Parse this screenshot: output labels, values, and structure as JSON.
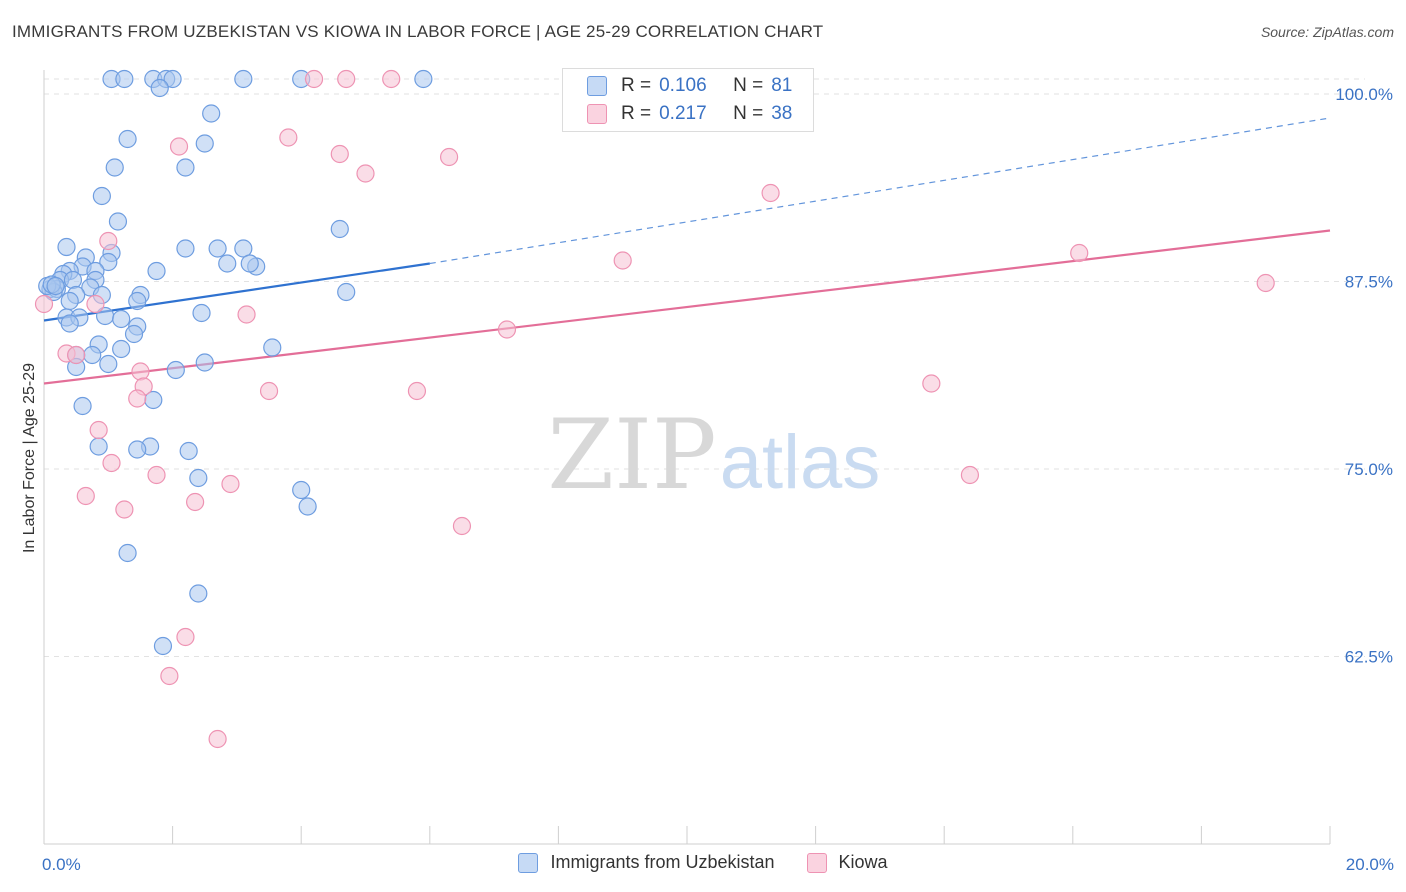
{
  "header": {
    "title": "IMMIGRANTS FROM UZBEKISTAN VS KIOWA IN LABOR FORCE | AGE 25-29 CORRELATION CHART",
    "source": "Source: ZipAtlas.com"
  },
  "watermark": {
    "zip": "ZIP",
    "atlas": "atlas"
  },
  "legend": {
    "rows": [
      {
        "r_label": "R =",
        "r_value": "0.106",
        "n_label": "N =",
        "n_value": "81"
      },
      {
        "r_label": "R =",
        "r_value": "0.217",
        "n_label": "N =",
        "n_value": "38"
      }
    ]
  },
  "colors": {
    "blue_fill": "#a9c7ef",
    "blue_stroke": "#6e9de0",
    "blue_line": "#2f72d0",
    "pink_fill": "#f6c1d3",
    "pink_stroke": "#ee93b3",
    "pink_line": "#e36e98",
    "tick_text": "#3a72c4",
    "grid": "#e2e2e2"
  },
  "chart_data": {
    "type": "scatter",
    "title": "IMMIGRANTS FROM UZBEKISTAN VS KIOWA IN LABOR FORCE | AGE 25-29 CORRELATION CHART",
    "xlabel": "",
    "ylabel": "In Labor Force | Age 25-29",
    "xlim": [
      0,
      20
    ],
    "ylim": [
      50,
      102
    ],
    "x_tick_labels": [
      {
        "value": 0,
        "label": "0.0%"
      },
      {
        "value": 20,
        "label": "20.0%"
      }
    ],
    "y_tick_labels": [
      {
        "value": 100,
        "label": "100.0%"
      },
      {
        "value": 87.5,
        "label": "87.5%"
      },
      {
        "value": 75,
        "label": "75.0%"
      },
      {
        "value": 62.5,
        "label": "62.5%"
      }
    ],
    "series": [
      {
        "name": "Immigrants from Uzbekistan",
        "color": "blue",
        "trend": {
          "x": [
            0,
            6
          ],
          "y": [
            84.9,
            88.7
          ],
          "dashed_extension": {
            "x": [
              6,
              20
            ],
            "y": [
              88.7,
              98.4
            ]
          }
        },
        "points": [
          [
            1.05,
            101
          ],
          [
            1.25,
            101
          ],
          [
            1.7,
            101
          ],
          [
            1.9,
            101
          ],
          [
            2.0,
            101
          ],
          [
            3.1,
            101
          ],
          [
            4.0,
            101
          ],
          [
            5.9,
            101
          ],
          [
            1.8,
            100.4
          ],
          [
            2.6,
            98.7
          ],
          [
            1.3,
            97.0
          ],
          [
            2.5,
            96.7
          ],
          [
            1.1,
            95.1
          ],
          [
            2.2,
            95.1
          ],
          [
            0.9,
            93.2
          ],
          [
            1.15,
            91.5
          ],
          [
            4.6,
            91.0
          ],
          [
            0.35,
            89.8
          ],
          [
            2.2,
            89.7
          ],
          [
            2.7,
            89.7
          ],
          [
            3.1,
            89.7
          ],
          [
            0.65,
            89.1
          ],
          [
            1.05,
            89.4
          ],
          [
            2.85,
            88.7
          ],
          [
            3.3,
            88.5
          ],
          [
            0.6,
            88.5
          ],
          [
            3.2,
            88.7
          ],
          [
            1.0,
            88.8
          ],
          [
            0.4,
            88.2
          ],
          [
            1.75,
            88.2
          ],
          [
            0.8,
            88.2
          ],
          [
            0.3,
            88.0
          ],
          [
            0.25,
            87.6
          ],
          [
            0.45,
            87.6
          ],
          [
            0.8,
            87.6
          ],
          [
            0.1,
            87.0
          ],
          [
            0.2,
            87.0
          ],
          [
            0.15,
            86.8
          ],
          [
            0.05,
            87.2
          ],
          [
            0.12,
            87.3
          ],
          [
            0.18,
            87.2
          ],
          [
            0.72,
            87.1
          ],
          [
            4.7,
            86.8
          ],
          [
            0.5,
            86.6
          ],
          [
            0.9,
            86.6
          ],
          [
            1.5,
            86.6
          ],
          [
            1.45,
            86.2
          ],
          [
            0.4,
            86.2
          ],
          [
            2.45,
            85.4
          ],
          [
            0.35,
            85.1
          ],
          [
            0.55,
            85.1
          ],
          [
            0.95,
            85.2
          ],
          [
            1.2,
            85.0
          ],
          [
            0.4,
            84.7
          ],
          [
            1.45,
            84.5
          ],
          [
            1.4,
            84.0
          ],
          [
            0.85,
            83.3
          ],
          [
            1.2,
            83.0
          ],
          [
            3.55,
            83.1
          ],
          [
            0.75,
            82.6
          ],
          [
            0.5,
            82.6
          ],
          [
            2.5,
            82.1
          ],
          [
            2.05,
            81.6
          ],
          [
            1.0,
            82.0
          ],
          [
            0.5,
            81.8
          ],
          [
            1.7,
            79.6
          ],
          [
            0.6,
            79.2
          ],
          [
            1.65,
            76.5
          ],
          [
            1.45,
            76.3
          ],
          [
            0.85,
            76.5
          ],
          [
            2.25,
            76.2
          ],
          [
            2.4,
            74.4
          ],
          [
            4.0,
            73.6
          ],
          [
            4.1,
            72.5
          ],
          [
            1.3,
            69.4
          ],
          [
            2.4,
            66.7
          ],
          [
            1.85,
            63.2
          ]
        ]
      },
      {
        "name": "Kiowa",
        "color": "pink",
        "trend": {
          "x": [
            0,
            20
          ],
          "y": [
            80.7,
            90.9
          ]
        },
        "points": [
          [
            4.2,
            101
          ],
          [
            4.7,
            101
          ],
          [
            5.4,
            101
          ],
          [
            3.8,
            97.1
          ],
          [
            2.1,
            96.5
          ],
          [
            4.6,
            96.0
          ],
          [
            6.3,
            95.8
          ],
          [
            5.0,
            94.7
          ],
          [
            11.3,
            93.4
          ],
          [
            1.0,
            90.2
          ],
          [
            9.0,
            88.9
          ],
          [
            16.1,
            89.4
          ],
          [
            19.0,
            87.4
          ],
          [
            0.0,
            86.0
          ],
          [
            0.8,
            86.0
          ],
          [
            3.15,
            85.3
          ],
          [
            7.2,
            84.3
          ],
          [
            0.35,
            82.7
          ],
          [
            0.5,
            82.6
          ],
          [
            1.5,
            81.5
          ],
          [
            13.8,
            80.7
          ],
          [
            1.55,
            80.5
          ],
          [
            3.5,
            80.2
          ],
          [
            5.8,
            80.2
          ],
          [
            1.45,
            79.7
          ],
          [
            0.85,
            77.6
          ],
          [
            1.05,
            75.4
          ],
          [
            1.75,
            74.6
          ],
          [
            2.9,
            74.0
          ],
          [
            14.4,
            74.6
          ],
          [
            0.65,
            73.2
          ],
          [
            2.35,
            72.8
          ],
          [
            1.25,
            72.3
          ],
          [
            6.5,
            71.2
          ],
          [
            2.2,
            63.8
          ],
          [
            1.95,
            61.2
          ],
          [
            2.7,
            57.0
          ]
        ]
      }
    ]
  },
  "bottom_legend": [
    {
      "label": "Immigrants from Uzbekistan"
    },
    {
      "label": "Kiowa"
    }
  ]
}
